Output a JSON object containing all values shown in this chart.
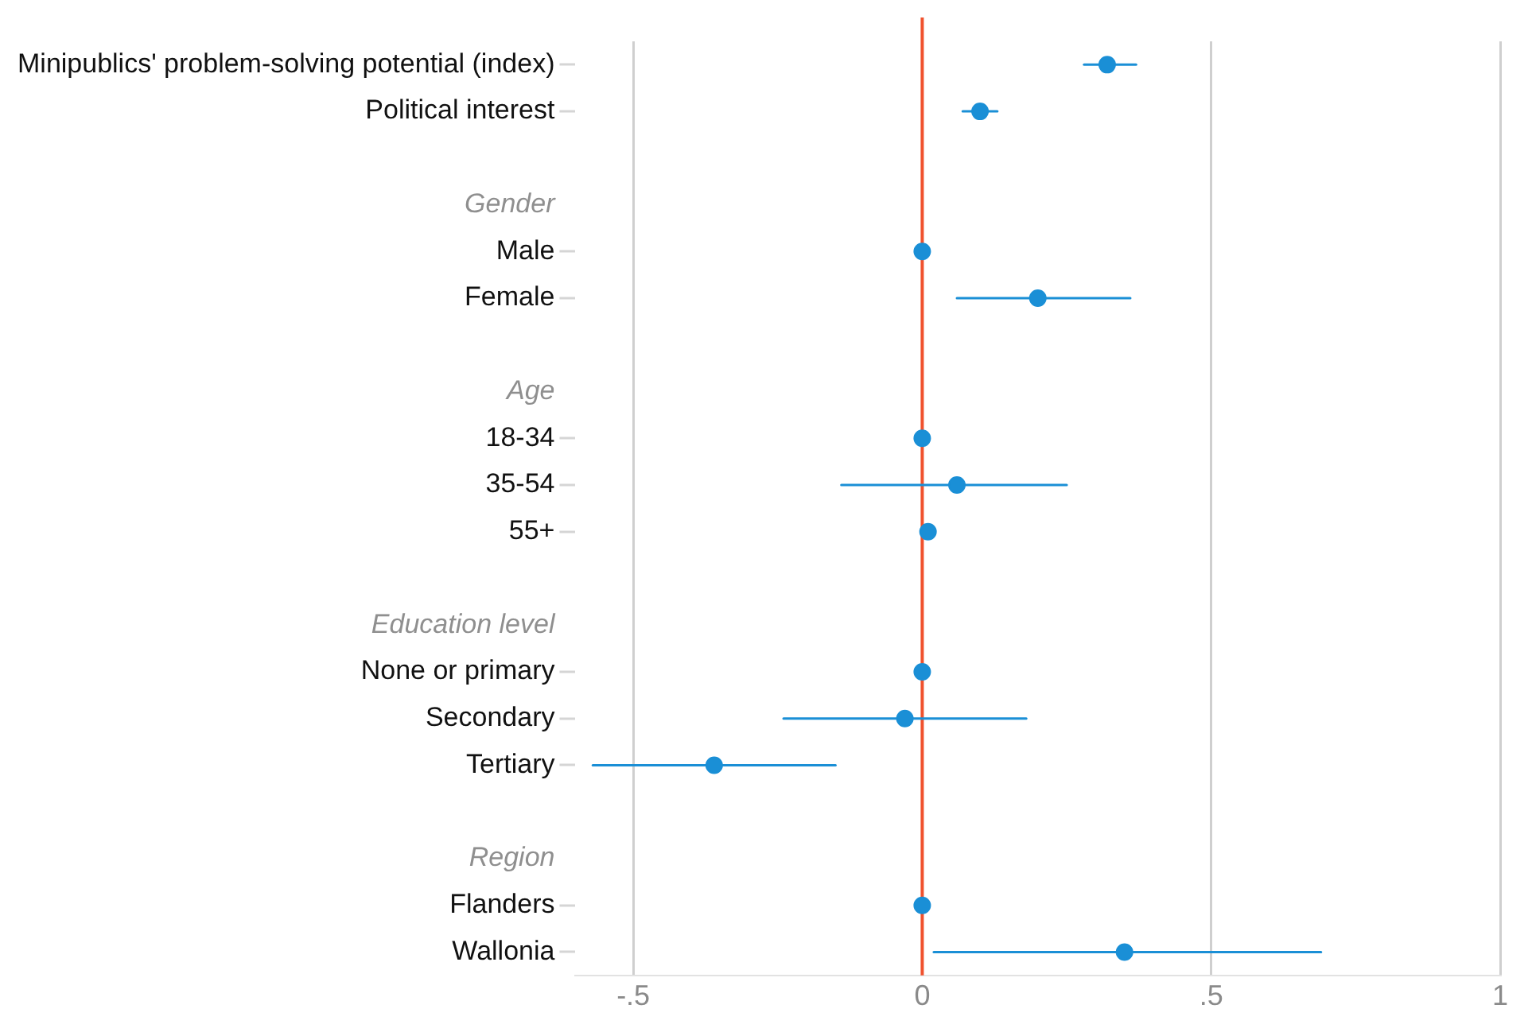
{
  "chart_data": {
    "type": "scatter",
    "orientation": "horizontal",
    "categories": [
      "Minipublics' problem-solving potential (index)",
      "Political interest",
      null,
      "Gender",
      "Male",
      "Female",
      null,
      "Age",
      "18-34",
      "35-54",
      "55+",
      null,
      "Education level",
      "None or primary",
      "Secondary",
      "Tertiary",
      null,
      "Region",
      "Flanders",
      "Wallonia"
    ],
    "values": [
      0.32,
      0.1,
      null,
      null,
      0,
      0.2,
      null,
      null,
      0,
      0.06,
      0.01,
      null,
      null,
      0,
      -0.03,
      -0.36,
      null,
      null,
      0,
      0.35
    ],
    "errors": [
      [
        0.28,
        0.37
      ],
      [
        0.07,
        0.13
      ],
      null,
      null,
      null,
      [
        0.06,
        0.36
      ],
      null,
      null,
      null,
      [
        -0.14,
        0.25
      ],
      null,
      null,
      null,
      null,
      [
        -0.24,
        0.18
      ],
      [
        -0.57,
        -0.15
      ],
      null,
      null,
      null,
      [
        0.02,
        0.69
      ]
    ],
    "color": "#1a8fd6",
    "xlim": [
      -0.6,
      1
    ],
    "xticks": [
      {
        "value": -0.5,
        "label": "-.5"
      },
      0,
      {
        "value": 0.5,
        "label": ".5"
      },
      1
    ],
    "ref_lines": [
      {
        "axis": "x",
        "value": 0,
        "color": "#f0522e"
      }
    ],
    "grid": "x",
    "marker": "circle",
    "legend": false
  }
}
